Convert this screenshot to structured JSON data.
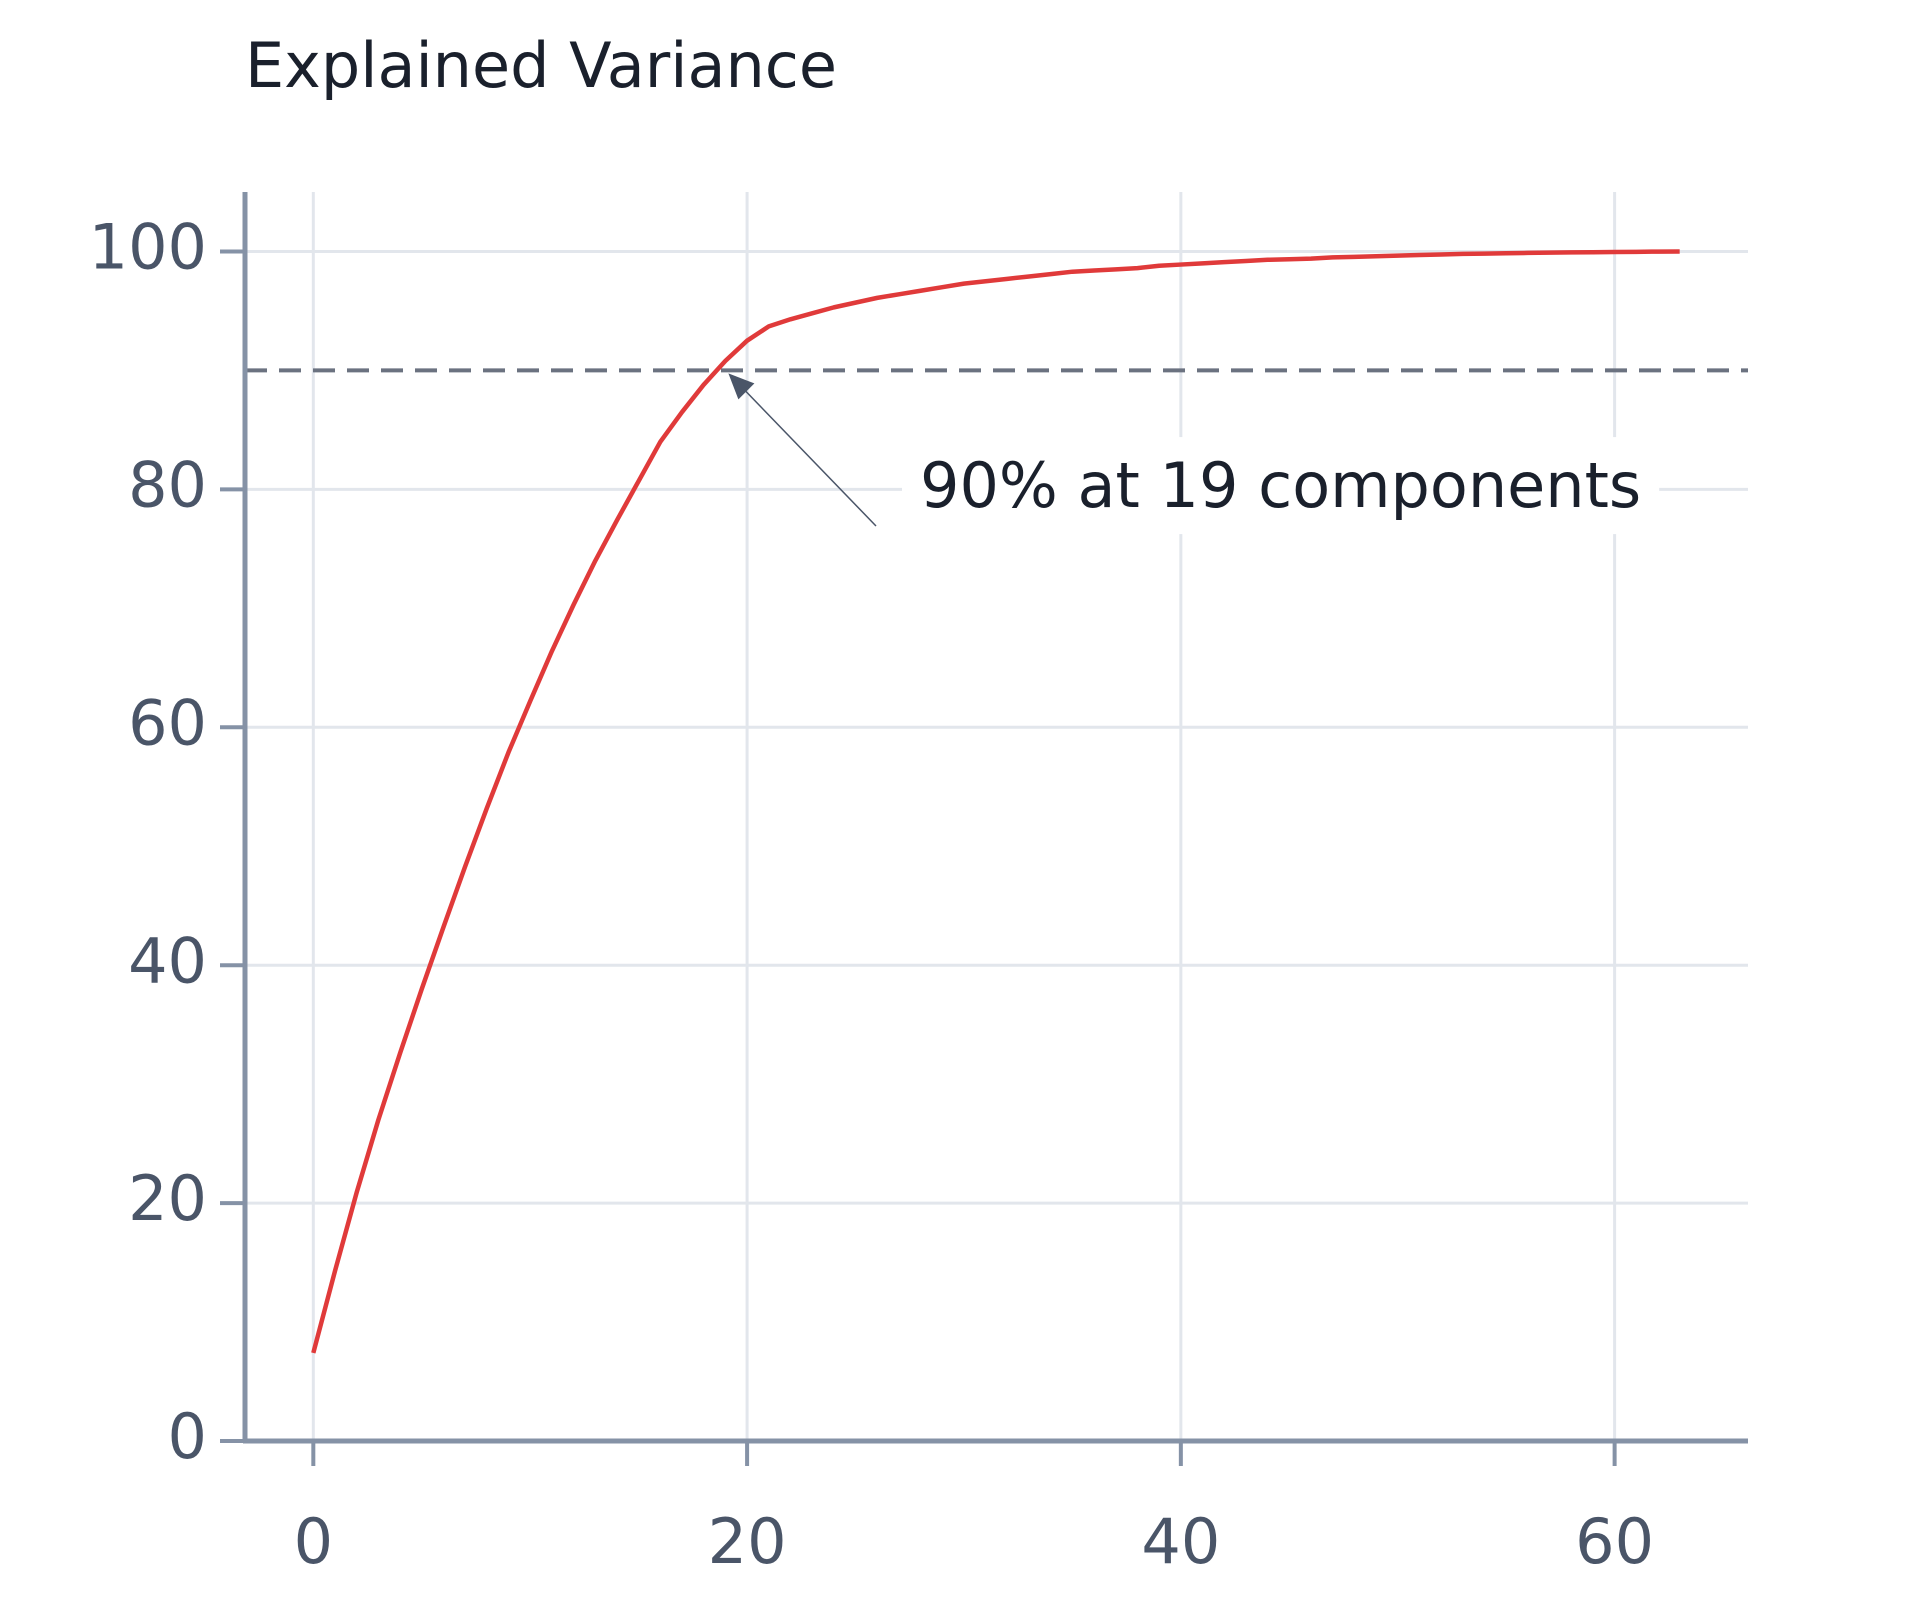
{
  "chart_data": {
    "type": "line",
    "title": "Explained Variance",
    "x": [
      0,
      1,
      2,
      3,
      4,
      5,
      6,
      7,
      8,
      9,
      10,
      11,
      12,
      13,
      14,
      15,
      16,
      17,
      18,
      19,
      20,
      21,
      22,
      23,
      24,
      25,
      26,
      27,
      28,
      29,
      30,
      31,
      32,
      33,
      34,
      35,
      36,
      37,
      38,
      39,
      40,
      41,
      42,
      43,
      44,
      45,
      46,
      47,
      48,
      49,
      50,
      51,
      52,
      53,
      54,
      55,
      56,
      57,
      58,
      59,
      60,
      61,
      62,
      63
    ],
    "series": [
      {
        "color": "#e03a3a",
        "values": [
          7.4,
          14.3,
          20.9,
          27.0,
          32.6,
          38.0,
          43.2,
          48.3,
          53.2,
          57.9,
          62.2,
          66.4,
          70.3,
          74.0,
          77.4,
          80.7,
          84.0,
          86.5,
          88.8,
          90.8,
          92.5,
          93.7,
          94.3,
          94.8,
          95.3,
          95.7,
          96.1,
          96.4,
          96.7,
          97.0,
          97.3,
          97.5,
          97.7,
          97.9,
          98.1,
          98.3,
          98.4,
          98.5,
          98.6,
          98.8,
          98.9,
          99.0,
          99.1,
          99.2,
          99.3,
          99.35,
          99.4,
          99.5,
          99.55,
          99.6,
          99.65,
          99.7,
          99.75,
          99.8,
          99.82,
          99.85,
          99.88,
          99.9,
          99.92,
          99.94,
          99.96,
          99.97,
          99.99,
          100
        ]
      }
    ],
    "threshold": {
      "value": 90,
      "color": "#6b7280"
    },
    "annotation": {
      "text": "90% at 19 components",
      "xy": [
        19,
        90
      ]
    },
    "xlim": [
      -3.15,
      66.15
    ],
    "ylim": [
      0,
      105
    ],
    "xticks": [
      0,
      20,
      40,
      60
    ],
    "yticks": [
      0,
      20,
      40,
      60,
      80,
      100
    ],
    "grid": true
  }
}
